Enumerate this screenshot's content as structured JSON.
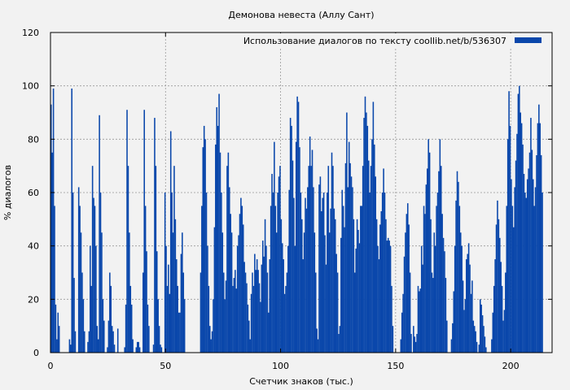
{
  "chart_data": {
    "type": "bar",
    "title": "Демонова невеста (Аллу Сант)",
    "xlabel": "Счетчик знаков (тыс.)",
    "ylabel": "% диалогов",
    "xlim": [
      0,
      218
    ],
    "ylim": [
      0,
      120
    ],
    "xticks": [
      0,
      50,
      100,
      150,
      200
    ],
    "yticks": [
      0,
      20,
      40,
      60,
      80,
      100,
      120
    ],
    "grid": true,
    "legend": {
      "position": "top-right"
    },
    "series": [
      {
        "name": "Использование диалогов по тексту  coollib.net/b/536307",
        "color": "#0a47ab",
        "bin_width": 0.5,
        "values": [
          93,
          75,
          99,
          55,
          18,
          5,
          15,
          10,
          0,
          0,
          0,
          0,
          0,
          0,
          0,
          0,
          5,
          3,
          99,
          60,
          28,
          8,
          0,
          0,
          62,
          55,
          45,
          30,
          20,
          8,
          0,
          0,
          4,
          8,
          40,
          25,
          70,
          58,
          55,
          40,
          10,
          5,
          89,
          60,
          45,
          20,
          12,
          0,
          0,
          2,
          12,
          30,
          25,
          10,
          8,
          3,
          0,
          0,
          9,
          0,
          0,
          0,
          0,
          0,
          2,
          18,
          91,
          70,
          45,
          25,
          18,
          5,
          0,
          0,
          2,
          4,
          4,
          2,
          0,
          0,
          30,
          91,
          55,
          38,
          18,
          10,
          0,
          0,
          0,
          3,
          88,
          70,
          38,
          20,
          10,
          3,
          2,
          0,
          0,
          60,
          40,
          25,
          33,
          22,
          83,
          60,
          45,
          70,
          50,
          35,
          25,
          15,
          15,
          37,
          45,
          30,
          20,
          0,
          0,
          0,
          0,
          0,
          0,
          0,
          0,
          0,
          0,
          0,
          0,
          0,
          30,
          55,
          77,
          85,
          80,
          60,
          40,
          25,
          10,
          5,
          8,
          20,
          47,
          78,
          92,
          85,
          97,
          75,
          60,
          45,
          30,
          20,
          27,
          70,
          75,
          62,
          52,
          45,
          25,
          28,
          31,
          24,
          40,
          44,
          52,
          58,
          55,
          48,
          34,
          30,
          26,
          18,
          12,
          5,
          22,
          30,
          25,
          37,
          31,
          35,
          31,
          26,
          19,
          33,
          42,
          36,
          50,
          40,
          30,
          15,
          35,
          55,
          67,
          60,
          79,
          55,
          45,
          60,
          66,
          70,
          50,
          41,
          35,
          22,
          25,
          30,
          40,
          61,
          88,
          85,
          72,
          58,
          40,
          79,
          96,
          94,
          77,
          60,
          50,
          35,
          45,
          58,
          54,
          62,
          70,
          81,
          70,
          76,
          62,
          45,
          30,
          9,
          5,
          63,
          66,
          53,
          58,
          60,
          44,
          33,
          60,
          70,
          45,
          54,
          75,
          70,
          54,
          50,
          37,
          30,
          7,
          10,
          43,
          61,
          55,
          47,
          71,
          90,
          62,
          79,
          71,
          66,
          62,
          50,
          30,
          39,
          50,
          46,
          41,
          55,
          55,
          70,
          88,
          96,
          90,
          85,
          72,
          60,
          70,
          80,
          94,
          78,
          66,
          50,
          40,
          35,
          48,
          53,
          60,
          69,
          60,
          50,
          42,
          43,
          42,
          40,
          25,
          10,
          0,
          0,
          0,
          0,
          0,
          0,
          5,
          15,
          22,
          36,
          45,
          52,
          56,
          48,
          30,
          7,
          0,
          10,
          6,
          4,
          7,
          25,
          23,
          24,
          40,
          33,
          55,
          52,
          63,
          69,
          80,
          75,
          50,
          30,
          28,
          45,
          40,
          55,
          60,
          68,
          80,
          70,
          52,
          43,
          38,
          28,
          12,
          0,
          0,
          0,
          5,
          11,
          23,
          40,
          57,
          68,
          64,
          55,
          45,
          40,
          27,
          16,
          20,
          35,
          37,
          41,
          33,
          22,
          27,
          12,
          10,
          8,
          4,
          0,
          3,
          20,
          18,
          14,
          10,
          6,
          2,
          0,
          0,
          0,
          0,
          5,
          15,
          25,
          35,
          48,
          57,
          50,
          43,
          34,
          25,
          12,
          16,
          30,
          55,
          80,
          98,
          85,
          65,
          55,
          47,
          62,
          72,
          82,
          97,
          100,
          90,
          86,
          78,
          67,
          60,
          58,
          65,
          69,
          75,
          88,
          76,
          65,
          55,
          62,
          74,
          86,
          93,
          86,
          74,
          60
        ]
      }
    ]
  }
}
